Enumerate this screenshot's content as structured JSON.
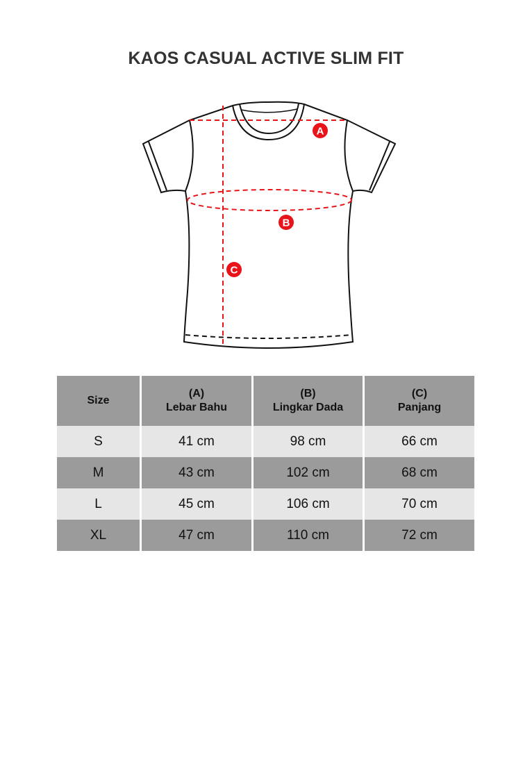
{
  "title": "KAOS CASUAL ACTIVE SLIM FIT",
  "diagram": {
    "markers": [
      "A",
      "B",
      "C"
    ],
    "marker_color": "#e8141a"
  },
  "table": {
    "headers": [
      {
        "line1": "",
        "line2": "Size"
      },
      {
        "line1": "(A)",
        "line2": "Lebar Bahu"
      },
      {
        "line1": "(B)",
        "line2": "Lingkar Dada"
      },
      {
        "line1": "(C)",
        "line2": "Panjang"
      }
    ],
    "rows": [
      [
        "S",
        "41 cm",
        "98 cm",
        "66 cm"
      ],
      [
        "M",
        "43 cm",
        "102 cm",
        "68 cm"
      ],
      [
        "L",
        "45 cm",
        "106 cm",
        "70 cm"
      ],
      [
        "XL",
        "47 cm",
        "110 cm",
        "72 cm"
      ]
    ]
  }
}
